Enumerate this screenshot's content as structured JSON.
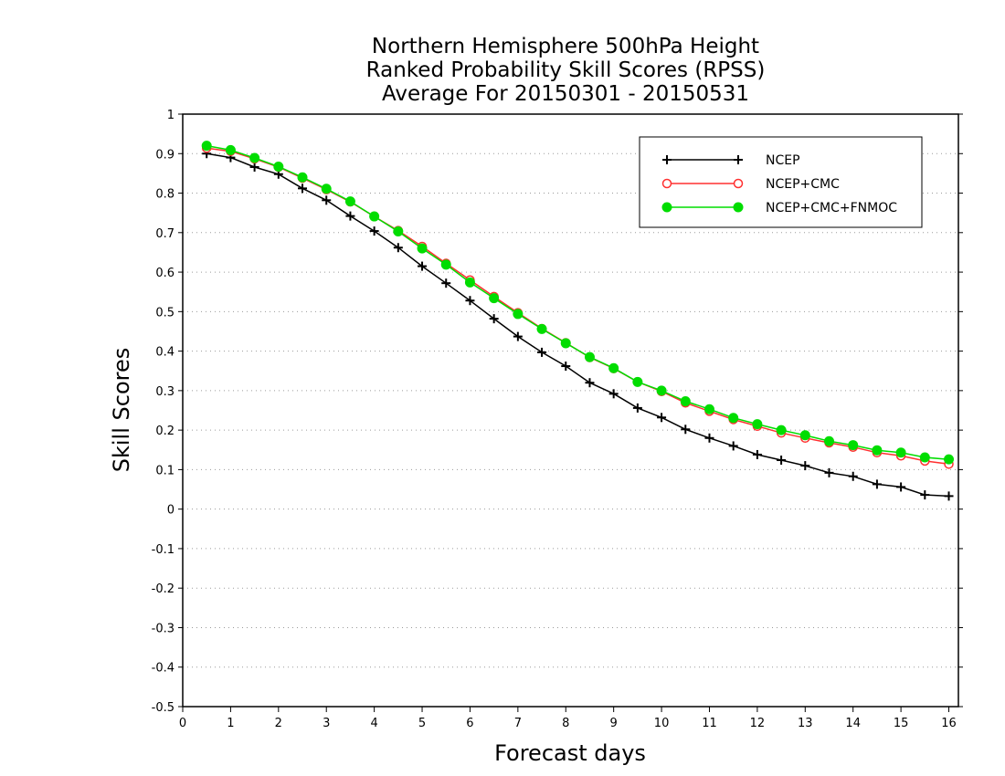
{
  "chart_data": {
    "type": "line",
    "title_lines": [
      "Northern Hemisphere 500hPa Height",
      "Ranked Probability Skill Scores (RPSS)",
      "Average For 20150301 - 20150531"
    ],
    "xlabel": "Forecast days",
    "ylabel": "Skill Scores",
    "xlim": [
      0,
      16.2
    ],
    "ylim": [
      -0.5,
      1
    ],
    "x_ticks": [
      "0",
      "1",
      "2",
      "3",
      "4",
      "5",
      "6",
      "7",
      "8",
      "9",
      "10",
      "11",
      "12",
      "13",
      "14",
      "15",
      "16"
    ],
    "y_ticks": [
      "-0.5",
      "-0.4",
      "-0.3",
      "-0.2",
      "-0.1",
      "0",
      "0.1",
      "0.2",
      "0.3",
      "0.4",
      "0.5",
      "0.6",
      "0.7",
      "0.8",
      "0.9",
      "1"
    ],
    "grid": "horizontal dotted",
    "legend_position": "top-right",
    "x": [
      0.5,
      1,
      1.5,
      2,
      2.5,
      3,
      3.5,
      4,
      4.5,
      5,
      5.5,
      6,
      6.5,
      7,
      7.5,
      8,
      8.5,
      9,
      9.5,
      10,
      10.5,
      11,
      11.5,
      12,
      12.5,
      13,
      13.5,
      14,
      14.5,
      15,
      15.5,
      16
    ],
    "series": [
      {
        "name": "NCEP",
        "color": "#000000",
        "marker": "plus",
        "values": [
          0.9,
          0.89,
          0.866,
          0.848,
          0.812,
          0.782,
          0.742,
          0.704,
          0.662,
          0.615,
          0.572,
          0.528,
          0.482,
          0.437,
          0.397,
          0.362,
          0.32,
          0.292,
          0.256,
          0.232,
          0.202,
          0.18,
          0.16,
          0.138,
          0.124,
          0.11,
          0.092,
          0.083,
          0.063,
          0.056,
          0.036,
          0.033
        ]
      },
      {
        "name": "NCEP+CMC",
        "color": "#ff3030",
        "marker": "open-circle",
        "values": [
          0.914,
          0.906,
          0.887,
          0.866,
          0.838,
          0.809,
          0.778,
          0.741,
          0.705,
          0.665,
          0.622,
          0.58,
          0.538,
          0.497,
          0.457,
          0.421,
          0.384,
          0.356,
          0.322,
          0.298,
          0.269,
          0.248,
          0.227,
          0.21,
          0.193,
          0.18,
          0.168,
          0.157,
          0.143,
          0.135,
          0.122,
          0.114
        ]
      },
      {
        "name": "NCEP+CMC+FNMOC",
        "color": "#00dd00",
        "marker": "filled-circle",
        "values": [
          0.92,
          0.909,
          0.889,
          0.867,
          0.84,
          0.811,
          0.779,
          0.741,
          0.703,
          0.66,
          0.619,
          0.574,
          0.534,
          0.494,
          0.456,
          0.42,
          0.385,
          0.357,
          0.322,
          0.3,
          0.273,
          0.253,
          0.231,
          0.215,
          0.2,
          0.187,
          0.172,
          0.162,
          0.149,
          0.143,
          0.131,
          0.126
        ]
      }
    ]
  }
}
